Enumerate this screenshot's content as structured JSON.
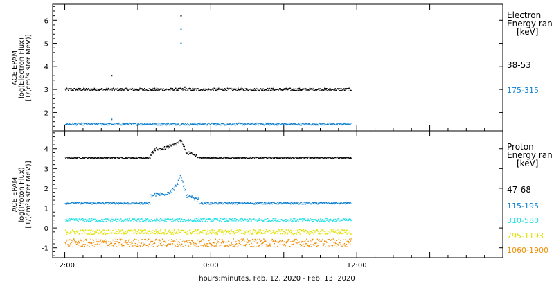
{
  "chart_data": [
    {
      "type": "scatter",
      "panel": "electron",
      "ylabel": [
        "ACE EPAM",
        "log(Electron Flux)",
        "[1/(cm²s ster MeV)]"
      ],
      "legend_title": [
        "Electron",
        "Energy ran",
        "[keV]"
      ],
      "ylim": [
        1.2,
        6.7
      ],
      "yticks": [
        "2",
        "3",
        "4",
        "5",
        "6"
      ],
      "series": [
        {
          "name": "38-53",
          "color": "#000000",
          "baseline": 3.0,
          "noise": 0.06,
          "spikes": [
            {
              "x": 3.8,
              "y": 3.6
            },
            {
              "x": 9.5,
              "y": 6.2
            },
            {
              "x": 9.8,
              "y": 3.1
            }
          ]
        },
        {
          "name": "175-315",
          "color": "#0b7fd0",
          "baseline": 1.5,
          "noise": 0.05,
          "spikes": [
            {
              "x": 9.5,
              "y": 5.6
            },
            {
              "x": 9.5,
              "y": 5.0
            },
            {
              "x": 3.8,
              "y": 1.7
            }
          ]
        }
      ]
    },
    {
      "type": "scatter",
      "panel": "proton",
      "ylabel": [
        "ACE EPAM",
        "log(Proton Flux)",
        "[1/(cm²s ster MeV)]"
      ],
      "legend_title": [
        "Proton",
        "Energy ran",
        "[keV]"
      ],
      "ylim": [
        -1.5,
        4.9
      ],
      "yticks": [
        "-1",
        "0",
        "1",
        "2",
        "3",
        "4"
      ],
      "series": [
        {
          "name": "47-68",
          "color": "#000000",
          "baseline": 3.55,
          "noise": 0.04,
          "event": [
            [
              7.0,
              3.7
            ],
            [
              7.5,
              4.0
            ],
            [
              8.0,
              4.0
            ],
            [
              8.5,
              4.1
            ],
            [
              9.0,
              4.2
            ],
            [
              9.5,
              4.4
            ],
            [
              10.0,
              3.8
            ],
            [
              11.0,
              3.6
            ]
          ]
        },
        {
          "name": "115-195",
          "color": "#0b7fd0",
          "baseline": 1.25,
          "noise": 0.05,
          "event": [
            [
              7.0,
              1.6
            ],
            [
              7.5,
              1.7
            ],
            [
              8.0,
              1.7
            ],
            [
              8.5,
              1.8
            ],
            [
              9.0,
              2.0
            ],
            [
              9.5,
              2.6
            ],
            [
              10.0,
              1.6
            ],
            [
              11.0,
              1.4
            ]
          ]
        },
        {
          "name": "310-580",
          "color": "#1fe0e6",
          "baseline": 0.4,
          "noise": 0.08,
          "event": [
            [
              9.5,
              0.7
            ]
          ]
        },
        {
          "name": "795-1193",
          "color": "#e0e000",
          "baseline": -0.2,
          "noise": 0.12,
          "event": []
        },
        {
          "name": "1060-1900",
          "color": "#f08c00",
          "baseline": -0.75,
          "noise": 0.2,
          "event": []
        }
      ]
    }
  ],
  "xaxis": {
    "label": "hours:minutes, Feb. 12, 2020 - Feb. 13, 2020",
    "range_hours": [
      -1,
      36
    ],
    "ticks": [
      {
        "h": 0,
        "label": "12:00"
      },
      {
        "h": 12,
        "label": "0:00"
      },
      {
        "h": 24,
        "label": "12:00"
      }
    ],
    "data_range_hours": [
      0,
      23.5
    ]
  }
}
